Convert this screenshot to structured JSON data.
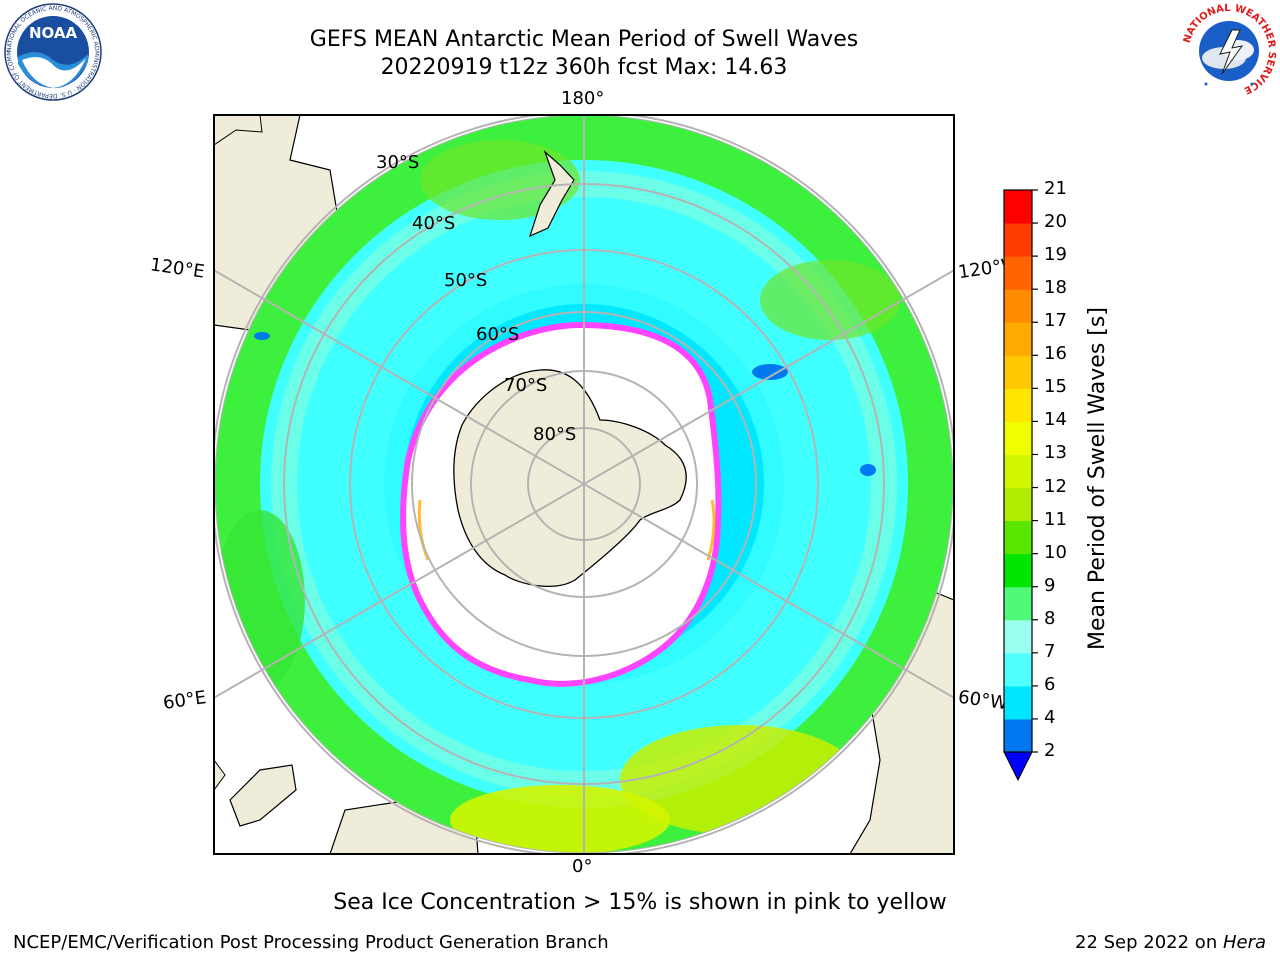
{
  "header": {
    "title_line1": "GEFS MEAN Antarctic Mean Period of Swell Waves",
    "title_line2": "20220919 t12z 360h fcst   Max: 14.63"
  },
  "logos": {
    "noaa": {
      "text": "NOAA",
      "ring_text": "NATIONAL OCEANIC AND ATMOSPHERIC ADMINISTRATION · U.S. DEPARTMENT OF COMMERCE"
    },
    "nws": {
      "ring_text": "NATIONAL WEATHER SERVICE"
    }
  },
  "map": {
    "projection": "south-polar-stereographic",
    "longitude_labels": {
      "top": "180°",
      "bottom": "0°",
      "upper_left": "120°E",
      "upper_right": "120°W",
      "lower_left": "60°E",
      "lower_right": "60°W"
    },
    "latitude_labels": [
      "30°S",
      "40°S",
      "50°S",
      "60°S",
      "70°S",
      "80°S"
    ],
    "colors": {
      "land": "#efedd9",
      "ocean_missing": "#ffffff",
      "sea_ice": "#ff44ff",
      "grid": "#b4b4b4"
    }
  },
  "colorbar": {
    "label": "Mean Period of Swell Waves [s]",
    "ticks": [
      "2",
      "4",
      "6",
      "7",
      "8",
      "9",
      "10",
      "11",
      "12",
      "13",
      "14",
      "15",
      "16",
      "17",
      "18",
      "19",
      "20",
      "21"
    ],
    "colors": [
      "#0078f0",
      "#00e6ff",
      "#50ffff",
      "#9bfff0",
      "#50fa78",
      "#00e600",
      "#5ae600",
      "#afed00",
      "#d2f500",
      "#f0ff00",
      "#ffe600",
      "#ffc800",
      "#ffaa00",
      "#ff8c00",
      "#ff6400",
      "#ff3c00",
      "#ff0000"
    ],
    "under_color": "#0000ff",
    "extend": "min"
  },
  "caption": "Sea Ice Concentration > 15% is shown in pink to yellow",
  "footer": {
    "left": "NCEP/EMC/Verification Post Processing Product Generation Branch",
    "right_date": "22 Sep 2022 on ",
    "right_host": "Hera"
  }
}
